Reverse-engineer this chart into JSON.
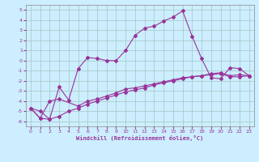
{
  "xlabel": "Windchill (Refroidissement éolien,°C)",
  "bg_color": "#cceeff",
  "grid_color": "#aacccc",
  "line_color": "#993399",
  "xlim": [
    -0.5,
    23.5
  ],
  "ylim": [
    -6.5,
    5.5
  ],
  "yticks": [
    -6,
    -5,
    -4,
    -3,
    -2,
    -1,
    0,
    1,
    2,
    3,
    4,
    5
  ],
  "xticks": [
    0,
    1,
    2,
    3,
    4,
    5,
    6,
    7,
    8,
    9,
    10,
    11,
    12,
    13,
    14,
    15,
    16,
    17,
    18,
    19,
    20,
    21,
    22,
    23
  ],
  "series1_x": [
    0,
    1,
    2,
    3,
    4,
    5,
    6,
    7,
    8,
    9,
    10,
    11,
    12,
    13,
    14,
    15,
    16,
    17,
    18,
    19,
    20,
    21,
    22,
    23
  ],
  "series1_y": [
    -4.7,
    -5.0,
    -5.8,
    -2.6,
    -3.9,
    -0.8,
    0.3,
    0.2,
    0.0,
    0.0,
    1.0,
    2.5,
    3.2,
    3.4,
    3.9,
    4.3,
    4.9,
    2.4,
    0.2,
    -1.7,
    -1.8,
    -0.7,
    -0.8,
    -1.5
  ],
  "series2_x": [
    0,
    1,
    2,
    3,
    5,
    6,
    7,
    8,
    9,
    10,
    11,
    12,
    13,
    14,
    15,
    16,
    17,
    18,
    19,
    20,
    21,
    22,
    23
  ],
  "series2_y": [
    -4.7,
    -5.7,
    -4.0,
    -3.8,
    -4.5,
    -4.0,
    -3.8,
    -3.5,
    -3.2,
    -2.8,
    -2.7,
    -2.5,
    -2.3,
    -2.1,
    -1.9,
    -1.7,
    -1.6,
    -1.5,
    -1.4,
    -1.3,
    -1.6,
    -1.6,
    -1.5
  ],
  "series3_x": [
    0,
    1,
    2,
    3,
    4,
    5,
    6,
    7,
    8,
    9,
    10,
    11,
    12,
    13,
    14,
    15,
    16,
    17,
    18,
    19,
    20,
    21,
    22,
    23
  ],
  "series3_y": [
    -4.7,
    -5.7,
    -5.8,
    -5.5,
    -5.0,
    -4.7,
    -4.3,
    -4.0,
    -3.7,
    -3.4,
    -3.1,
    -2.9,
    -2.7,
    -2.4,
    -2.2,
    -2.0,
    -1.8,
    -1.6,
    -1.5,
    -1.3,
    -1.2,
    -1.5,
    -1.4,
    -1.5
  ]
}
